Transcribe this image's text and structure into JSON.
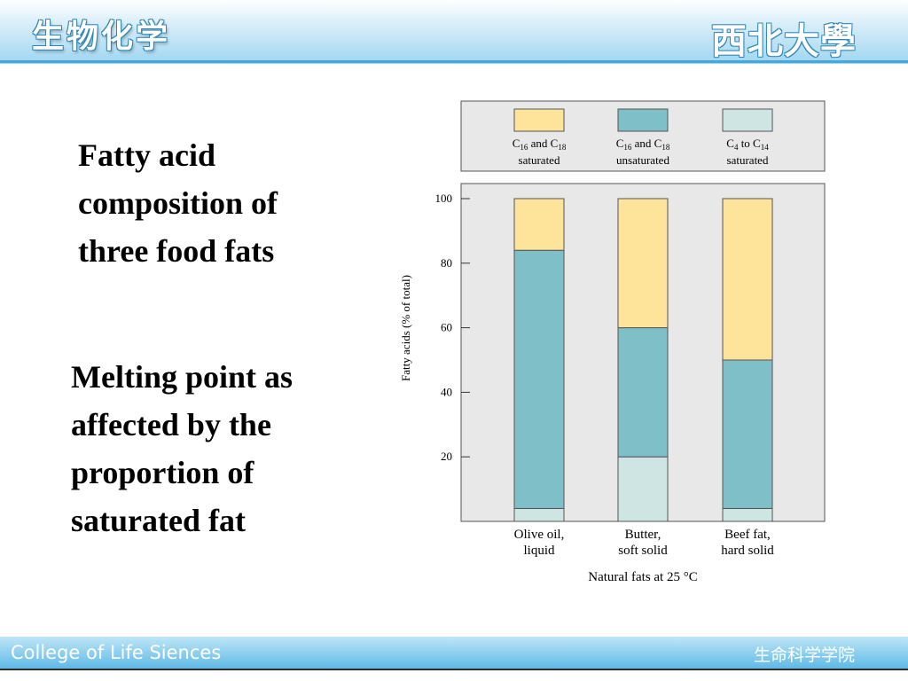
{
  "header": {
    "title": "生物化学",
    "logo_text": "西北大學"
  },
  "footer": {
    "left_text": "College of Life Siences",
    "right_text": "生命科学学院"
  },
  "text_blocks": [
    {
      "lines": [
        "Fatty acid",
        "composition of",
        "three food fats"
      ]
    },
    {
      "lines": [
        "Melting point as",
        "affected by the",
        "proportion of",
        "saturated fat"
      ]
    }
  ],
  "colors": {
    "c16_c18_saturated": "#fde49a",
    "c16_c18_unsaturated": "#7fbfc8",
    "c4_c14_saturated": "#cfe5e4",
    "panel_bg": "#e8e8e8"
  },
  "chart_data": {
    "type": "bar",
    "stacked": true,
    "title": "",
    "xlabel": "Natural fats at 25 °C",
    "ylabel": "Fatty acids (% of total)",
    "ylim": [
      0,
      100
    ],
    "yticks": [
      20,
      40,
      60,
      80,
      100
    ],
    "categories": [
      {
        "line1": "Olive oil,",
        "line2": "liquid"
      },
      {
        "line1": "Butter,",
        "line2": "soft solid"
      },
      {
        "line1": "Beef fat,",
        "line2": "hard solid"
      }
    ],
    "series": [
      {
        "name_main": "C",
        "name_sub1": "4",
        "name_mid": " to C",
        "name_sub2": "14",
        "name_line2": "saturated",
        "color": "#cfe5e4",
        "values": [
          4,
          20,
          4
        ]
      },
      {
        "name_main": "C",
        "name_sub1": "16",
        "name_mid": " and C",
        "name_sub2": "18",
        "name_line2": "unsaturated",
        "color": "#7fbfc8",
        "values": [
          80,
          40,
          46
        ]
      },
      {
        "name_main": "C",
        "name_sub1": "16",
        "name_mid": " and C",
        "name_sub2": "18",
        "name_line2": "saturated",
        "color": "#fde49a",
        "values": [
          16,
          40,
          50
        ]
      }
    ],
    "legend_order": [
      2,
      1,
      0
    ],
    "legend_position": "top"
  }
}
